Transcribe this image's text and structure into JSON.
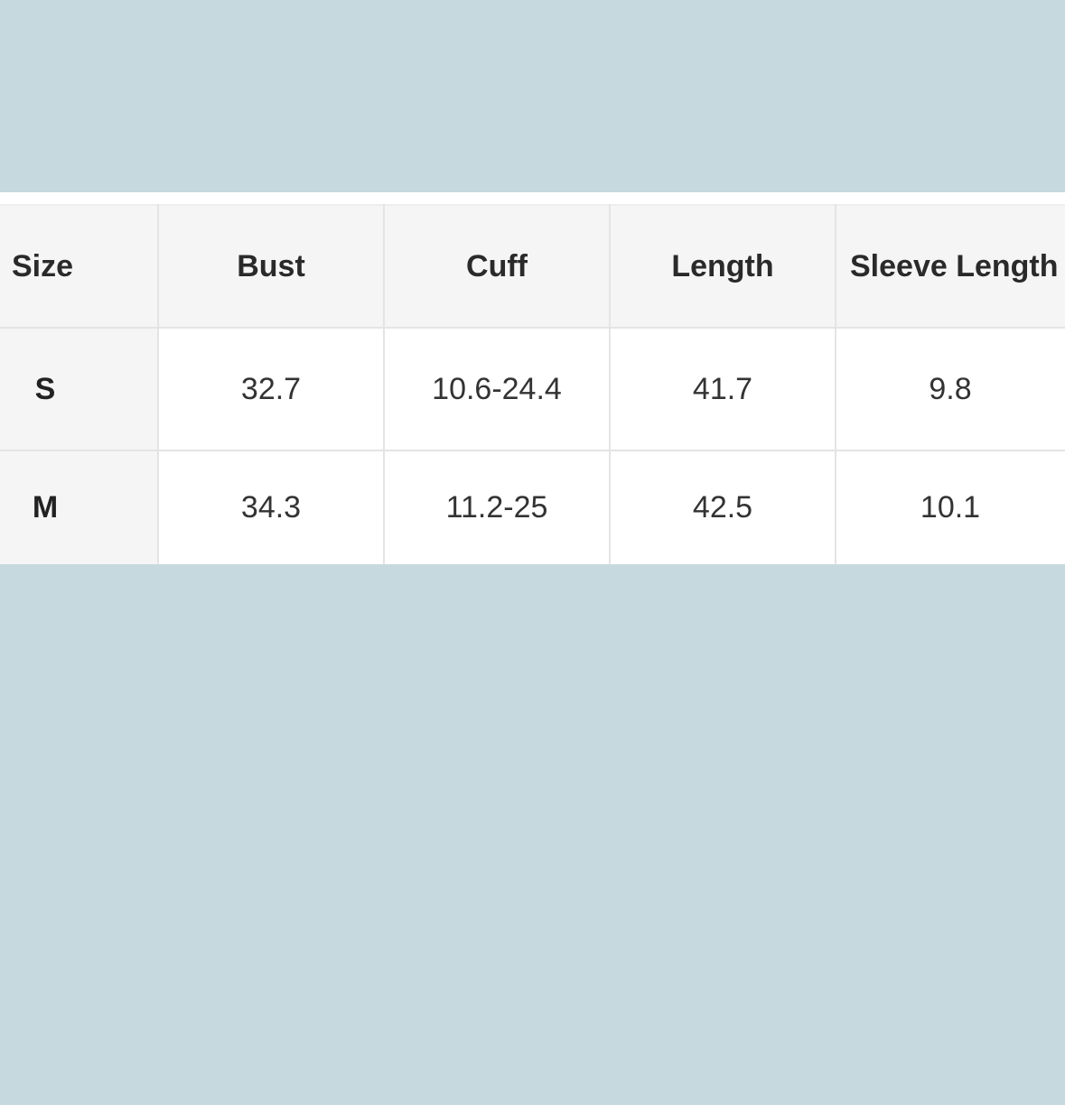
{
  "table": {
    "headers": [
      "Size",
      "Bust",
      "Cuff",
      "Length",
      "Sleeve Length"
    ],
    "rows": [
      [
        "S",
        "32.7",
        "10.6-24.4",
        "41.7",
        "9.8"
      ],
      [
        "M",
        "34.3",
        "11.2-25",
        "42.5",
        "10.1"
      ]
    ]
  },
  "colors": {
    "background": "#c6d9de",
    "header_bg": "#f5f5f5",
    "border": "#e4e4e4"
  }
}
